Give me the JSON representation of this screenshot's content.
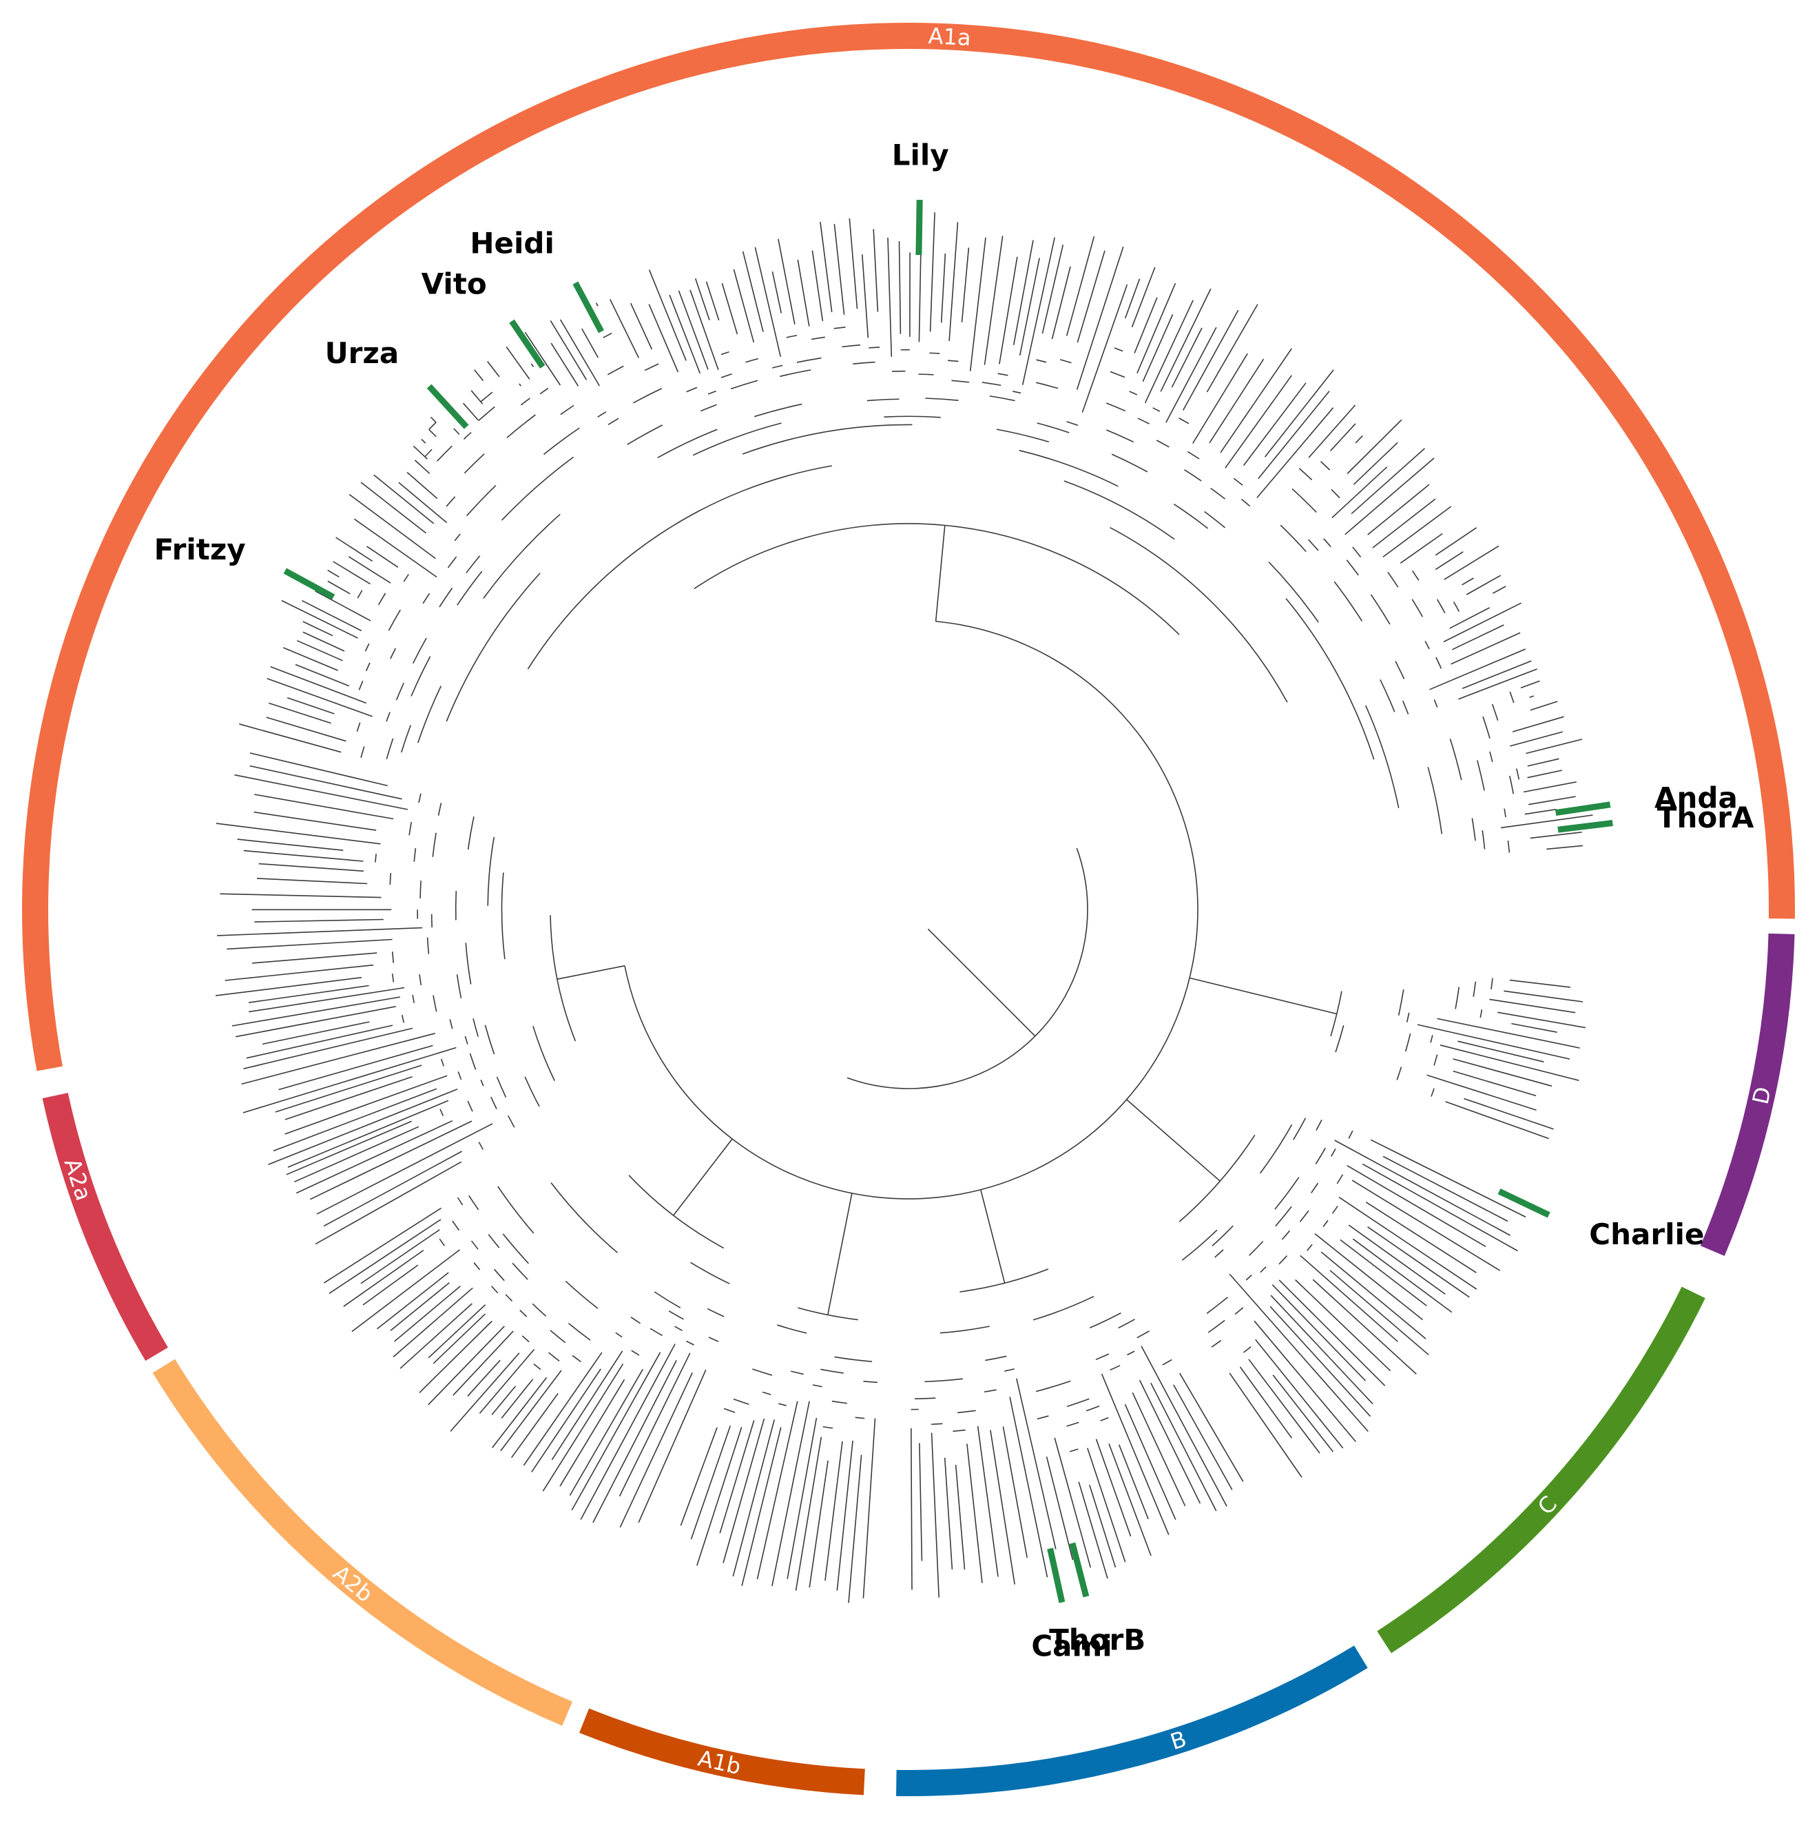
{
  "clades": [
    {
      "name": "A1a",
      "color": "#F26D43",
      "start": -100.5,
      "end": 90.6,
      "labelAt": 2.7
    },
    {
      "name": "D",
      "color": "#7A2C87",
      "start": 91.6,
      "end": 113.0,
      "labelAt": 102.3
    },
    {
      "name": "C",
      "color": "#4D9221",
      "start": 116.0,
      "end": 147.0,
      "labelAt": 133.0
    },
    {
      "name": "B",
      "color": "#0570B0",
      "start": 148.8,
      "end": 180.8,
      "labelAt": 162.0
    },
    {
      "name": "A1b",
      "color": "#CC4C02",
      "start": 182.9,
      "end": 201.8,
      "labelAt": 192.5
    },
    {
      "name": "A2b",
      "color": "#FDAE61",
      "start": 203.0,
      "end": 238.5,
      "labelAt": 219.5
    },
    {
      "name": "A2a",
      "color": "#D53E4F",
      "start": 239.4,
      "end": 257.7,
      "labelAt": 252.0
    }
  ],
  "isolates": [
    {
      "name": "Lily",
      "angle": 0.9,
      "label": "Lily"
    },
    {
      "name": "Heidi",
      "angle": -28.0,
      "label": "Heidi"
    },
    {
      "name": "Vito",
      "angle": -34.0,
      "label": "Vito"
    },
    {
      "name": "Urza",
      "angle": -42.5,
      "label": "Urza"
    },
    {
      "name": "Fritzy",
      "angle": -61.5,
      "label": "Fritzy"
    },
    {
      "name": "Anda",
      "angle": 81.5,
      "label": "Anda"
    },
    {
      "name": "ThorA",
      "angle": 83.0,
      "label": "ThorA"
    },
    {
      "name": "Charlie",
      "angle": 115.5,
      "label": "Charlie"
    },
    {
      "name": "Cami",
      "angle": 167.5,
      "label": "Cami"
    },
    {
      "name": "ThorB",
      "angle": 165.5,
      "label": "ThorB"
    }
  ],
  "colors": {
    "marker": "#238B45",
    "branch": "#3a3a3a"
  }
}
